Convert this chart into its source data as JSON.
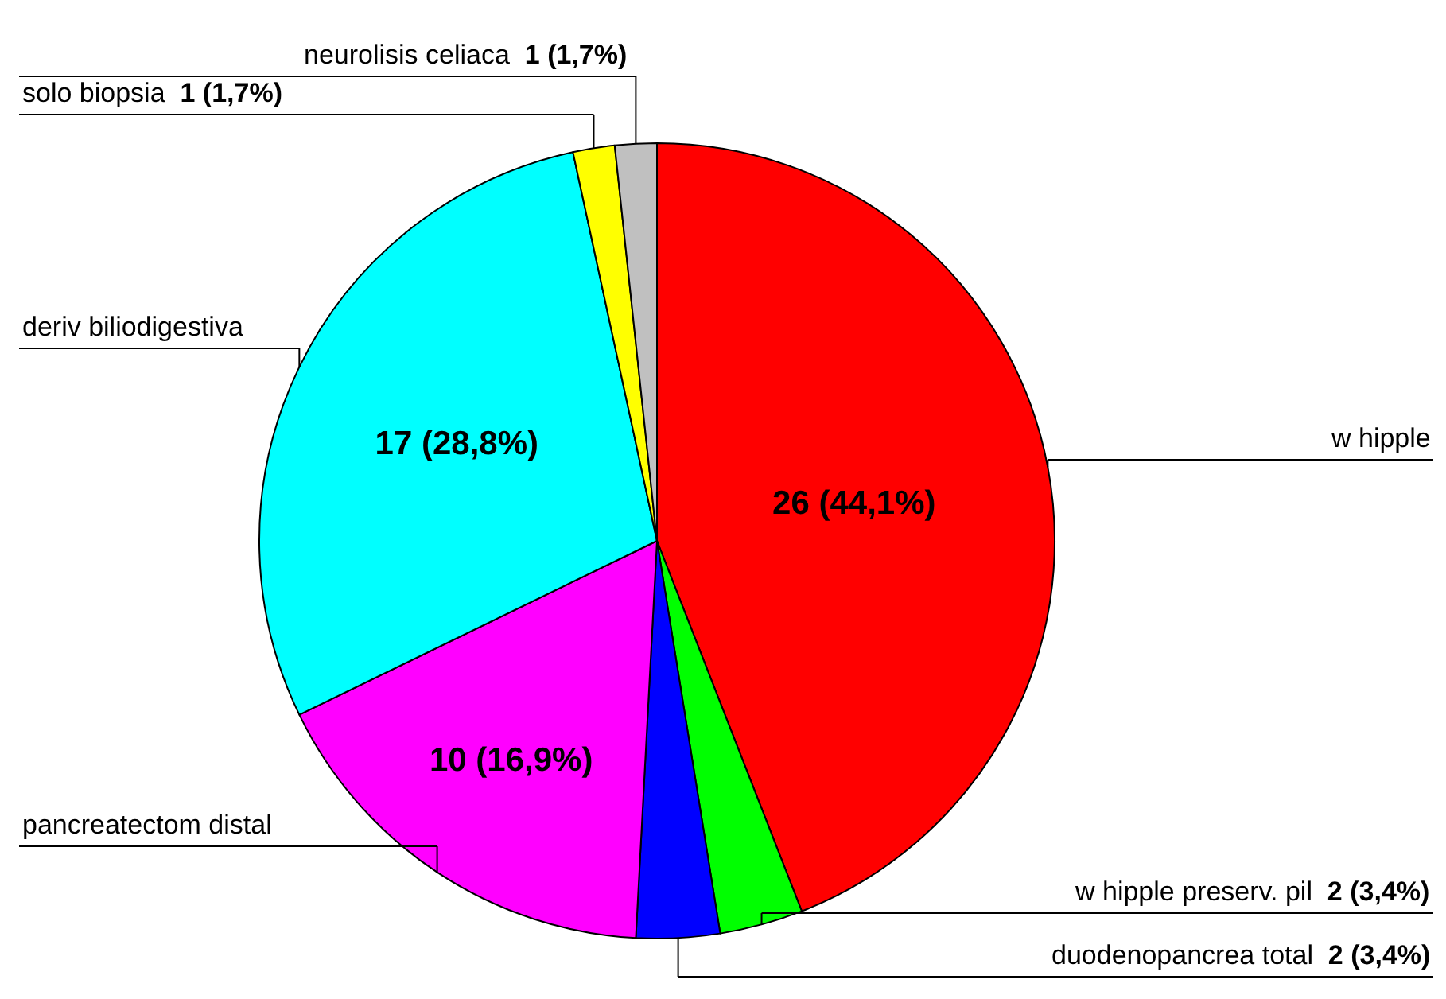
{
  "chart_data": {
    "type": "pie",
    "categories": [
      "w hipple",
      "w hipple preserv. pil",
      "duodenopancrea total",
      "pancreatectom distal",
      "deriv biliodigestiva",
      "solo biopsia",
      "neurolisis celiaca"
    ],
    "values": [
      26,
      2,
      2,
      10,
      17,
      1,
      1
    ],
    "colors": [
      "#ff0000",
      "#00ff00",
      "#0000ff",
      "#ff00ff",
      "#00ffff",
      "#ffff00",
      "#c0c0c0"
    ],
    "value_labels": [
      "26 (44,1%)",
      "2 (3,4%)",
      "2 (3,4%)",
      "10 (16,9%)",
      "17 (28,8%)",
      "1 (1,7%)",
      "1 (1,7%)"
    ]
  }
}
